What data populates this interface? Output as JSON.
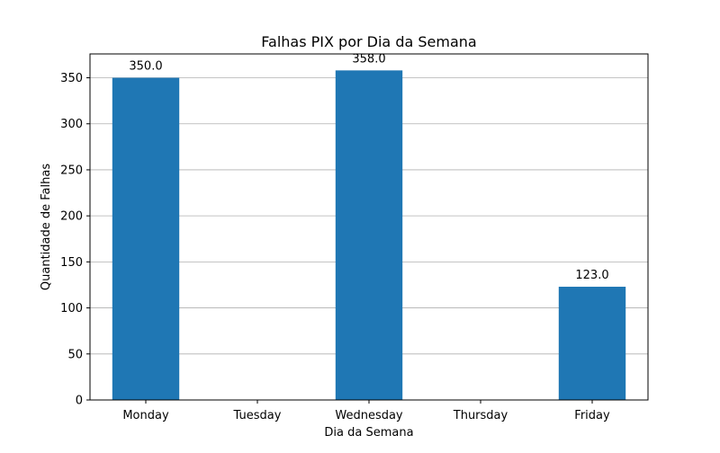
{
  "chart_data": {
    "type": "bar",
    "title": "Falhas PIX por Dia da Semana",
    "xlabel": "Dia da Semana",
    "ylabel": "Quantidade de Falhas",
    "categories": [
      "Monday",
      "Tuesday",
      "Wednesday",
      "Thursday",
      "Friday"
    ],
    "values": [
      350.0,
      0,
      358.0,
      0,
      123.0
    ],
    "value_labels": [
      "350.0",
      "",
      "358.0",
      "",
      "123.0"
    ],
    "ylim": [
      0,
      375.9
    ],
    "yticks": [
      0,
      50,
      100,
      150,
      200,
      250,
      300,
      350
    ],
    "grid": "y",
    "legend": "none",
    "bar_color": "#1f77b4",
    "grid_color": "#b0b0b0"
  }
}
